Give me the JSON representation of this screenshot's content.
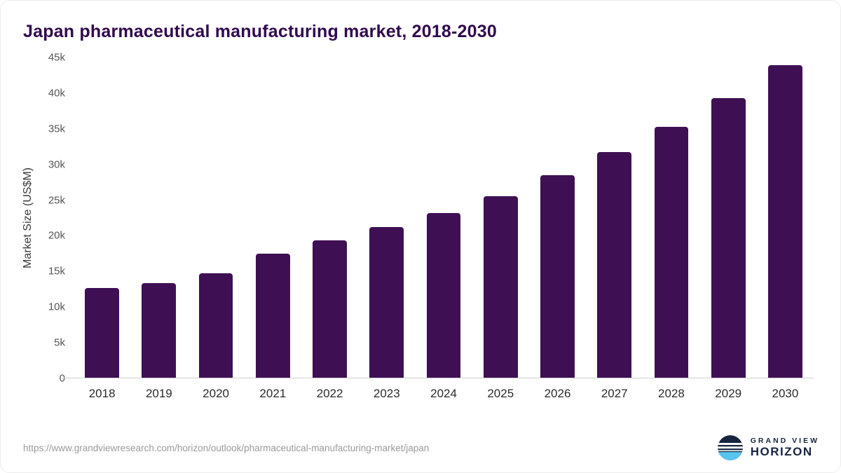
{
  "chart_data": {
    "type": "bar",
    "title": "Japan pharmaceutical manufacturing market, 2018-2030",
    "xlabel": "",
    "ylabel": "Market Size (US$M)",
    "ylim": [
      0,
      45000
    ],
    "y_tick_step": 5000,
    "y_tick_labels": [
      "0",
      "5k",
      "10k",
      "15k",
      "20k",
      "25k",
      "30k",
      "35k",
      "40k",
      "45k"
    ],
    "categories": [
      "2018",
      "2019",
      "2020",
      "2021",
      "2022",
      "2023",
      "2024",
      "2025",
      "2026",
      "2027",
      "2028",
      "2029",
      "2030"
    ],
    "values": [
      12700,
      13400,
      14700,
      17500,
      19400,
      21200,
      23200,
      25500,
      28500,
      31700,
      35300,
      39300,
      43900
    ],
    "bar_color": "#3e1053",
    "grid": false,
    "legend": false
  },
  "footer": {
    "source_url": "https://www.grandviewresearch.com/horizon/outlook/pharmaceutical-manufacturing-market/japan",
    "logo": {
      "line1": "GRAND VIEW",
      "line2": "HORIZON"
    }
  },
  "colors": {
    "title": "#31094e",
    "bar": "#3e1053",
    "logo_navy": "#16243f",
    "logo_blue": "#56c5f0"
  }
}
